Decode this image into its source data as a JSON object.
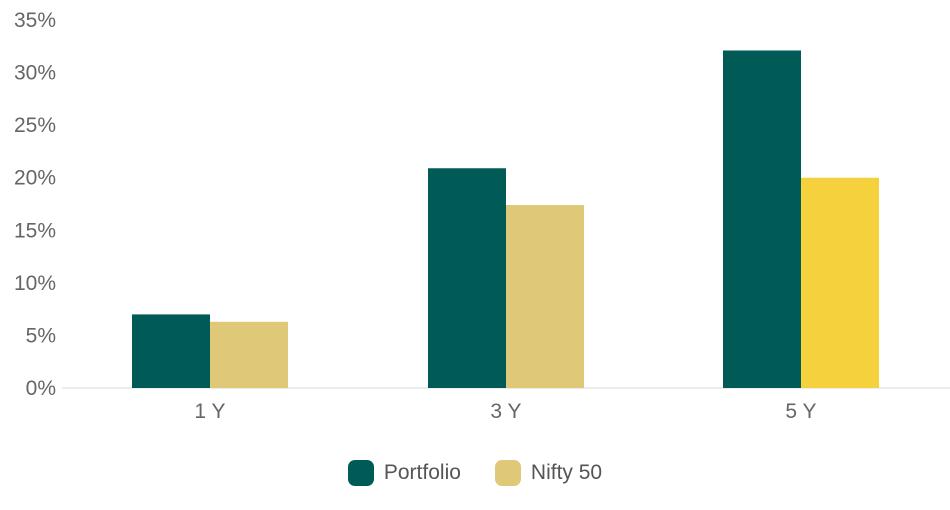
{
  "chart_data": {
    "type": "bar",
    "categories": [
      "1 Y",
      "3 Y",
      "5 Y"
    ],
    "series": [
      {
        "name": "Portfolio",
        "values": [
          7.0,
          20.9,
          32.1
        ],
        "colors": [
          "#005a56",
          "#005a56",
          "#005a56"
        ]
      },
      {
        "name": "Nifty 50",
        "values": [
          6.3,
          17.4,
          20.0
        ],
        "colors": [
          "#dfc978",
          "#dfc978",
          "#f6d13e"
        ]
      }
    ],
    "ylim": [
      0,
      35
    ],
    "yticks": [
      "0%",
      "5%",
      "10%",
      "15%",
      "20%",
      "25%",
      "30%",
      "35%"
    ],
    "ytick_values": [
      0,
      5,
      10,
      15,
      20,
      25,
      30,
      35
    ],
    "grid": false,
    "legend_position": "bottom-center",
    "legend_colors": [
      "#005a56",
      "#dfc978"
    ]
  }
}
